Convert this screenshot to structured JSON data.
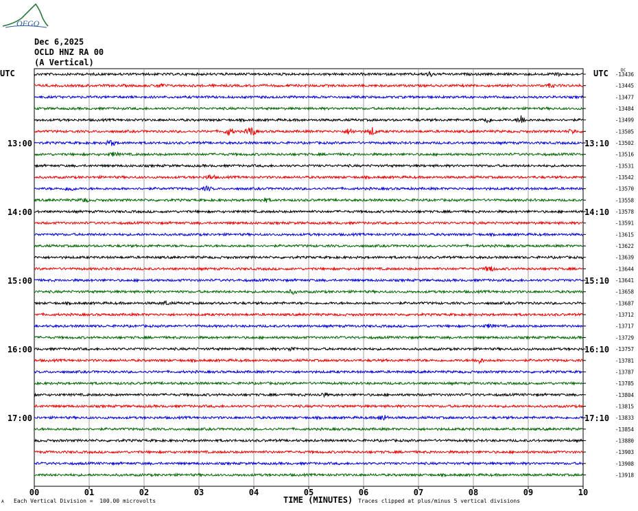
{
  "header": {
    "date": "Dec 6,2025",
    "station": "OCLD HNZ RA 00",
    "component": "(A Vertical)",
    "logo_text": "OFGO",
    "utc_left": "UTC",
    "utc_right": "UTC",
    "right_corner_label": "DC"
  },
  "footer": {
    "scale_note": "Each Vertical Division =  100.00 microvolts",
    "clip_note": "Traces clipped at plus/minus 5 vertical divisions",
    "corner_mark": "A"
  },
  "chart_data": {
    "type": "line",
    "title": "OCLD HNZ RA 00 (A Vertical)",
    "xlabel": "TIME (MINUTES)",
    "xlim": [
      0,
      10
    ],
    "x_ticks": [
      "00",
      "01",
      "02",
      "03",
      "04",
      "05",
      "06",
      "07",
      "08",
      "09",
      "10"
    ],
    "left_time_labels": [
      {
        "row": 6,
        "label": "13:00"
      },
      {
        "row": 12,
        "label": "14:00"
      },
      {
        "row": 18,
        "label": "15:00"
      },
      {
        "row": 24,
        "label": "16:00"
      },
      {
        "row": 30,
        "label": "17:00"
      }
    ],
    "right_time_labels": [
      {
        "row": 6,
        "label": "13:10"
      },
      {
        "row": 12,
        "label": "14:10"
      },
      {
        "row": 18,
        "label": "15:10"
      },
      {
        "row": 24,
        "label": "16:10"
      },
      {
        "row": 30,
        "label": "17:10"
      }
    ],
    "trace_colors": [
      "#000000",
      "#ee0000",
      "#0000dd",
      "#006600"
    ],
    "dc_offsets": [
      -13436,
      -13445,
      -13477,
      -13484,
      -13499,
      -13505,
      -13502,
      -13516,
      -13531,
      -13542,
      -13570,
      -13558,
      -13578,
      -13591,
      -13615,
      -13622,
      -13639,
      -13644,
      -13641,
      -13658,
      -13687,
      -13712,
      -13717,
      -13729,
      -13757,
      -13781,
      -13787,
      -13785,
      -13804,
      -13815,
      -13833,
      -13854,
      -13880,
      -13903,
      -13908,
      -13918
    ],
    "events": [
      {
        "row": 0,
        "minute": 7.2,
        "amplitude": 2.0
      },
      {
        "row": 0,
        "minute": 9.5,
        "amplitude": 1.5
      },
      {
        "row": 1,
        "minute": 2.3,
        "amplitude": 1.3
      },
      {
        "row": 1,
        "minute": 9.4,
        "amplitude": 1.4
      },
      {
        "row": 4,
        "minute": 8.25,
        "amplitude": 2.2
      },
      {
        "row": 4,
        "minute": 8.88,
        "amplitude": 4.0
      },
      {
        "row": 5,
        "minute": 3.55,
        "amplitude": 3.0
      },
      {
        "row": 5,
        "minute": 3.95,
        "amplitude": 4.2
      },
      {
        "row": 5,
        "minute": 5.75,
        "amplitude": 2.6
      },
      {
        "row": 5,
        "minute": 6.15,
        "amplitude": 3.4
      },
      {
        "row": 5,
        "minute": 9.8,
        "amplitude": 1.6
      },
      {
        "row": 6,
        "minute": 1.4,
        "amplitude": 2.2
      },
      {
        "row": 7,
        "minute": 1.45,
        "amplitude": 1.6
      },
      {
        "row": 9,
        "minute": 3.2,
        "amplitude": 1.8
      },
      {
        "row": 10,
        "minute": 0.65,
        "amplitude": 1.8
      },
      {
        "row": 10,
        "minute": 3.15,
        "amplitude": 1.6
      },
      {
        "row": 11,
        "minute": 0.9,
        "amplitude": 1.4
      },
      {
        "row": 11,
        "minute": 4.2,
        "amplitude": 1.5
      },
      {
        "row": 17,
        "minute": 8.3,
        "amplitude": 2.4
      },
      {
        "row": 19,
        "minute": 4.7,
        "amplitude": 1.4
      },
      {
        "row": 20,
        "minute": 2.4,
        "amplitude": 1.3
      },
      {
        "row": 22,
        "minute": 8.3,
        "amplitude": 1.5
      },
      {
        "row": 24,
        "minute": 4.7,
        "amplitude": 1.5
      },
      {
        "row": 25,
        "minute": 8.1,
        "amplitude": 2.2
      },
      {
        "row": 28,
        "minute": 5.25,
        "amplitude": 1.4
      },
      {
        "row": 30,
        "minute": 6.35,
        "amplitude": 2.6
      }
    ]
  }
}
